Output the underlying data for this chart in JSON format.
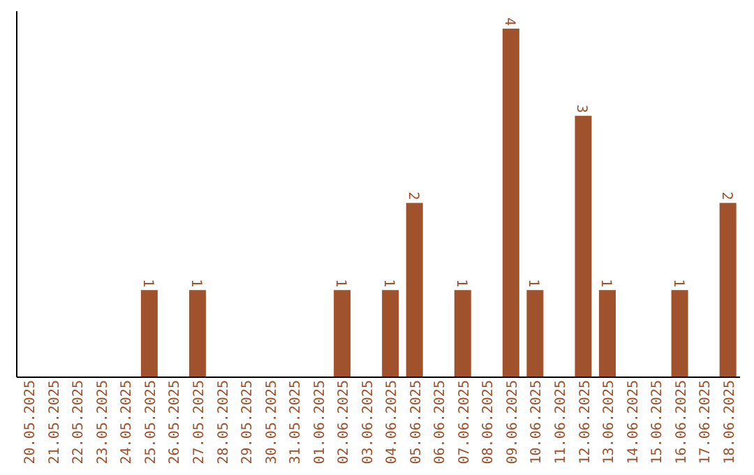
{
  "chart_data": {
    "type": "bar",
    "categories": [
      "20.05.2025",
      "21.05.2025",
      "22.05.2025",
      "23.05.2025",
      "24.05.2025",
      "25.05.2025",
      "26.05.2025",
      "27.05.2025",
      "28.05.2025",
      "29.05.2025",
      "30.05.2025",
      "31.05.2025",
      "01.06.2025",
      "02.06.2025",
      "03.06.2025",
      "04.06.2025",
      "05.06.2025",
      "06.06.2025",
      "07.06.2025",
      "08.06.2025",
      "09.06.2025",
      "10.06.2025",
      "11.06.2025",
      "12.06.2025",
      "13.06.2025",
      "14.06.2025",
      "15.06.2025",
      "16.06.2025",
      "17.06.2025",
      "18.06.2025"
    ],
    "values": [
      0,
      0,
      0,
      0,
      0,
      1,
      0,
      1,
      0,
      0,
      0,
      0,
      0,
      1,
      0,
      1,
      2,
      0,
      1,
      0,
      4,
      1,
      0,
      3,
      1,
      0,
      0,
      1,
      0,
      2
    ],
    "value_labels": [
      null,
      null,
      null,
      null,
      null,
      "1",
      null,
      "1",
      null,
      null,
      null,
      null,
      null,
      "1",
      null,
      "1",
      "2",
      null,
      "1",
      null,
      "4",
      "1",
      null,
      "3",
      "1",
      null,
      null,
      "1",
      null,
      "2"
    ],
    "color": "#a0522d",
    "tick_labels": "x"
  }
}
